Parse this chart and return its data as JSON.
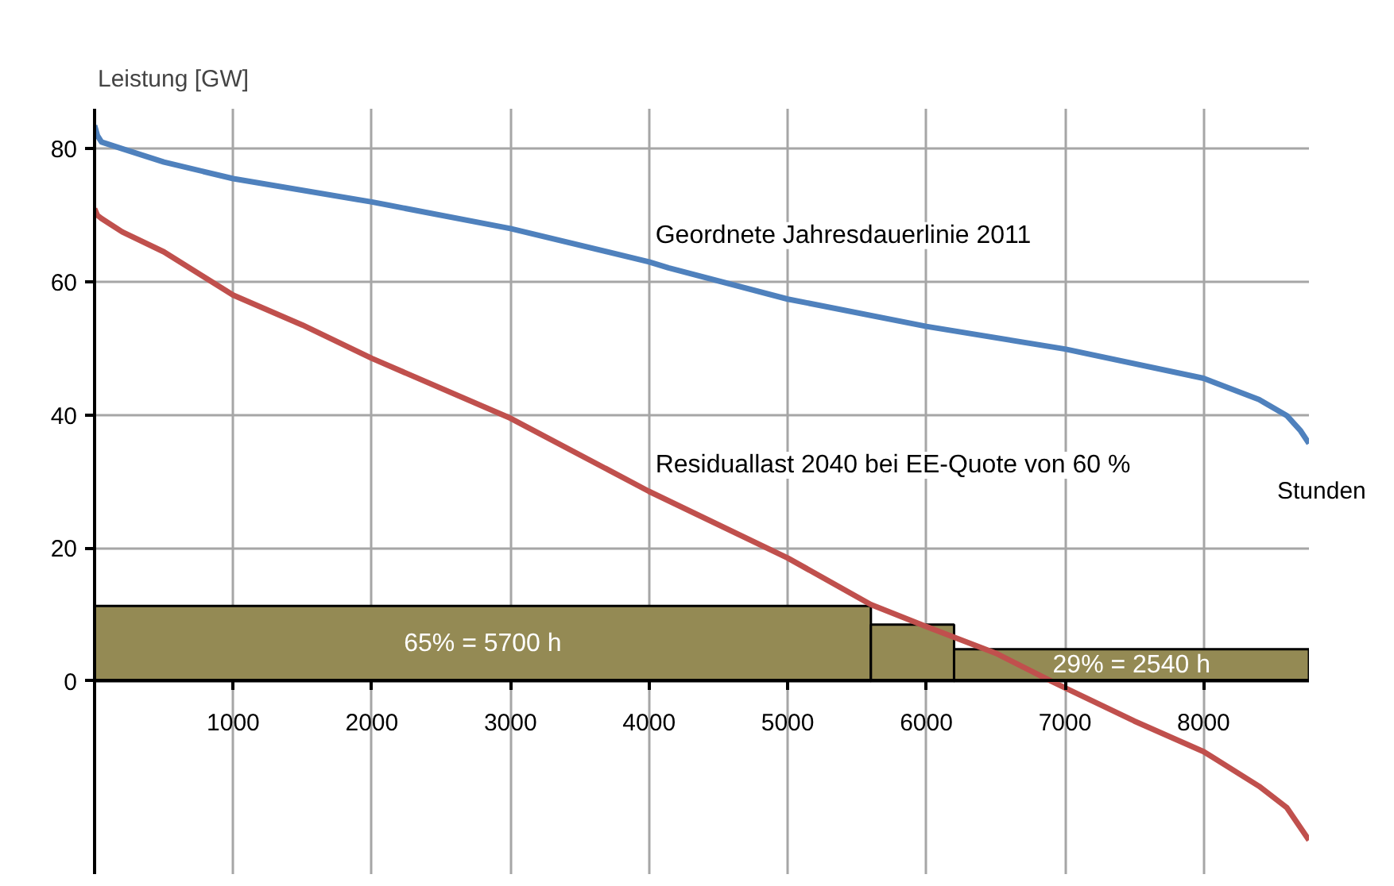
{
  "chart_data": {
    "type": "line",
    "xlabel": "Stunden",
    "ylabel": "Leistung [GW]",
    "xlim": [
      0,
      8760
    ],
    "ylim": [
      -29,
      86
    ],
    "xticks": [
      {
        "value": 0,
        "label": null
      },
      1000,
      2000,
      3000,
      4000,
      5000,
      6000,
      7000,
      8000
    ],
    "yticks": [
      0,
      20,
      40,
      60,
      80
    ],
    "grid": true,
    "legend": false,
    "marker": "none",
    "line_style": "solid",
    "series": [
      {
        "name": "Geordnete Jahresdauerlinie 2011",
        "color": "#4f81bd",
        "x": [
          0,
          20,
          50,
          200,
          500,
          1000,
          2000,
          3000,
          4000,
          4140,
          5000,
          6000,
          7000,
          8000,
          8400,
          8600,
          8700,
          8760
        ],
        "values": [
          83.5,
          82,
          81,
          80,
          78,
          75.5,
          72,
          68,
          63,
          62.1,
          57.4,
          53.3,
          49.9,
          45.5,
          42.3,
          39.9,
          37.6,
          35.7
        ]
      },
      {
        "name": "Residuallast 2040 bei EE-Quote von 60 %",
        "color": "#c0504d",
        "x": [
          0,
          20,
          50,
          200,
          500,
          1000,
          1500,
          2000,
          3000,
          4000,
          5000,
          5600,
          6000,
          6500,
          6900,
          7000,
          7500,
          8000,
          8400,
          8600,
          8760
        ],
        "values": [
          71,
          70,
          69.5,
          67.5,
          64.5,
          58,
          53.5,
          48.5,
          39.5,
          28.5,
          18.5,
          11.5,
          8.2,
          4.2,
          0,
          -1,
          -6,
          -10.6,
          -15.8,
          -19,
          -23.9
        ]
      },
      {
        "type": "histogram",
        "color": "#948a54",
        "bins": [
          0,
          5600,
          6200,
          8760
        ],
        "values": [
          11.3,
          8.5,
          4.8
        ]
      }
    ],
    "annotations": [
      "65% = 5700 h",
      "29% = 2540 h"
    ]
  }
}
